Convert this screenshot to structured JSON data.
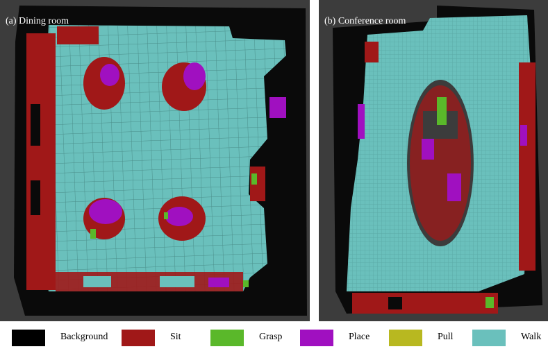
{
  "panels": [
    {
      "label": "(a) Dining room"
    },
    {
      "label": "(b) Conference room"
    }
  ],
  "legend": [
    {
      "label": "Background",
      "color": "#000000"
    },
    {
      "label": "Sit",
      "color": "#a01818"
    },
    {
      "label": "Grasp",
      "color": "#5ab82a"
    },
    {
      "label": "Place",
      "color": "#a010c0"
    },
    {
      "label": "Pull",
      "color": "#b8b820"
    },
    {
      "label": "Walk",
      "color": "#6ac0bc"
    }
  ],
  "colors": {
    "floor_bg": "#3c3c3c",
    "background": "#000000",
    "sit": "#a01818",
    "grasp": "#5ab82a",
    "place": "#a010c0",
    "pull": "#b8b820",
    "walk": "#6ac0bc"
  }
}
